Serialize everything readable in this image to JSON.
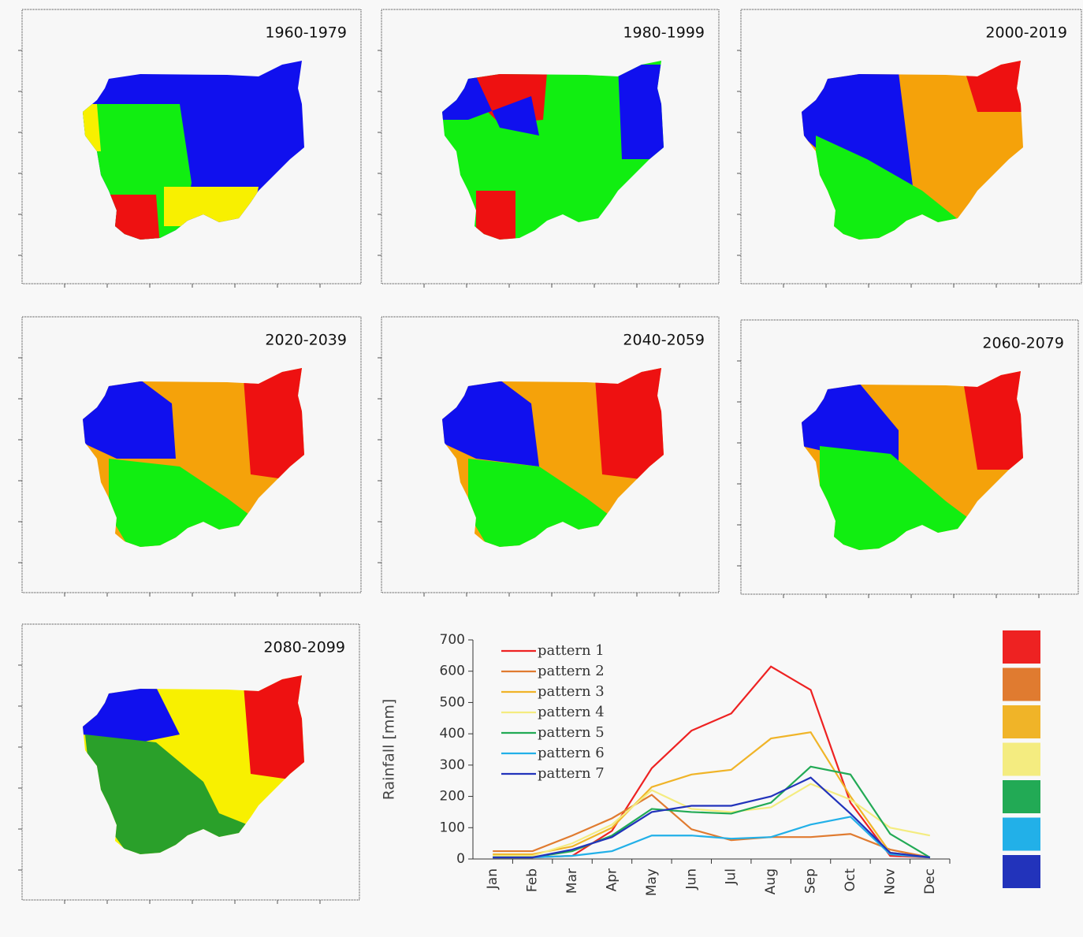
{
  "panels": [
    {
      "title": "1960-1979"
    },
    {
      "title": "1980-1999"
    },
    {
      "title": "2000-2019"
    },
    {
      "title": "2020-2039"
    },
    {
      "title": "2040-2059"
    },
    {
      "title": "2060-2079"
    },
    {
      "title": "2080-2099"
    }
  ],
  "chart_data": {
    "type": "line",
    "y_label": "Rainfall [mm]",
    "categories": [
      "Jan",
      "Feb",
      "Mar",
      "Apr",
      "May",
      "Jun",
      "Jul",
      "Aug",
      "Sep",
      "Oct",
      "Nov",
      "Dec"
    ],
    "ylim": [
      0,
      700
    ],
    "yticks": [
      0,
      100,
      200,
      300,
      400,
      500,
      600,
      700
    ],
    "series": [
      {
        "name": "pattern 1",
        "color": "#ee2222",
        "values": [
          5,
          5,
          10,
          90,
          290,
          410,
          465,
          615,
          540,
          180,
          10,
          5
        ]
      },
      {
        "name": "pattern 2",
        "color": "#e07b30",
        "values": [
          25,
          25,
          75,
          130,
          205,
          95,
          60,
          70,
          70,
          80,
          30,
          5
        ]
      },
      {
        "name": "pattern 3",
        "color": "#f0b428",
        "values": [
          15,
          15,
          40,
          100,
          230,
          270,
          285,
          385,
          405,
          200,
          20,
          5
        ]
      },
      {
        "name": "pattern 4",
        "color": "#f4ec80",
        "values": [
          10,
          10,
          50,
          110,
          220,
          160,
          150,
          165,
          240,
          190,
          100,
          75
        ]
      },
      {
        "name": "pattern 5",
        "color": "#22aa55",
        "values": [
          5,
          5,
          25,
          75,
          160,
          150,
          145,
          180,
          295,
          270,
          80,
          5
        ]
      },
      {
        "name": "pattern 6",
        "color": "#22b0e8",
        "values": [
          5,
          5,
          10,
          25,
          75,
          75,
          65,
          70,
          110,
          135,
          15,
          5
        ]
      },
      {
        "name": "pattern 7",
        "color": "#2233bb",
        "values": [
          5,
          5,
          30,
          70,
          150,
          170,
          170,
          200,
          260,
          145,
          20,
          5
        ]
      }
    ]
  }
}
